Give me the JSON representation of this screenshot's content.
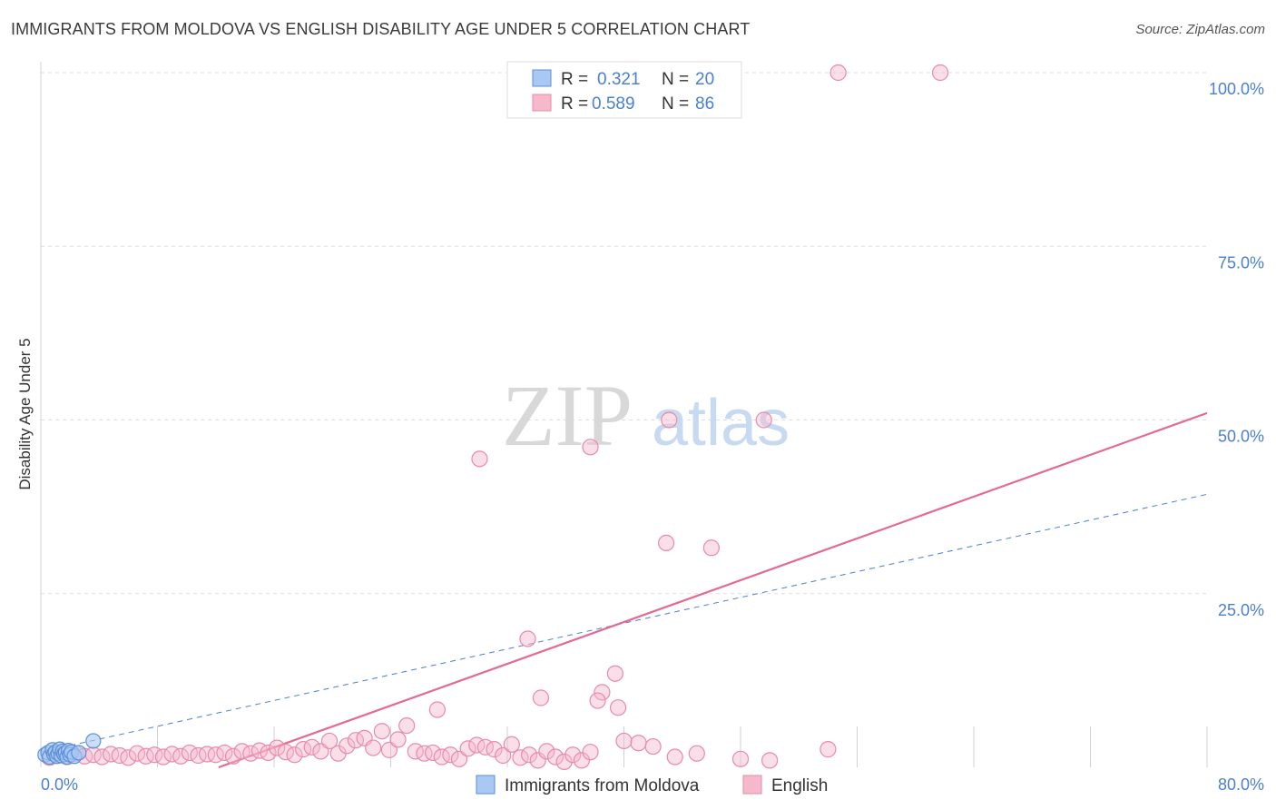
{
  "title": "IMMIGRANTS FROM MOLDOVA VS ENGLISH DISABILITY AGE UNDER 5 CORRELATION CHART",
  "source": "Source: ZipAtlas.com",
  "watermark": {
    "zip": "ZIP",
    "atlas": "atlas"
  },
  "legend_box": [
    {
      "r_label": "R =",
      "r_value": "0.321",
      "n_label": "N =",
      "n_value": "20"
    },
    {
      "r_label": "R =",
      "r_value": "0.589",
      "n_label": "N =",
      "n_value": "86"
    }
  ],
  "colors": {
    "moldova_fill": "#a9c8f4",
    "moldova_stroke": "#5b8ed8",
    "english_fill": "#f6b9cc",
    "english_stroke": "#e88aa8",
    "english_trend": "#e46a92",
    "moldova_trend": "#4a7fd1",
    "axis_value": "#4a7fd1",
    "grid": "#dddddd"
  },
  "chart_data": {
    "type": "scatter",
    "title": "IMMIGRANTS FROM MOLDOVA VS ENGLISH DISABILITY AGE UNDER 5 CORRELATION CHART",
    "xlabel": "",
    "ylabel": "Disability Age Under 5",
    "xlim": [
      0,
      80
    ],
    "ylim": [
      0,
      100
    ],
    "x_tick_labels": [
      "0.0%",
      "80.0%"
    ],
    "y_tick_labels": [
      "100.0%",
      "75.0%",
      "50.0%",
      "25.0%"
    ],
    "y_ticks": [
      100,
      75,
      50,
      25
    ],
    "grid": true,
    "legend_position": "bottom",
    "series": [
      {
        "name": "Immigrants from Moldova",
        "r": 0.321,
        "n": 20,
        "trend": {
          "x": [
            0,
            80
          ],
          "y": [
            2.2,
            39.3
          ],
          "style": "dashed"
        },
        "points": [
          [
            0.3,
            1.8
          ],
          [
            0.5,
            2.1
          ],
          [
            0.6,
            1.5
          ],
          [
            0.8,
            2.5
          ],
          [
            0.9,
            1.9
          ],
          [
            1.0,
            2.2
          ],
          [
            1.1,
            1.6
          ],
          [
            1.2,
            2.0
          ],
          [
            1.3,
            2.6
          ],
          [
            1.4,
            1.7
          ],
          [
            1.5,
            2.3
          ],
          [
            1.6,
            1.9
          ],
          [
            1.7,
            2.1
          ],
          [
            1.8,
            1.5
          ],
          [
            1.9,
            2.4
          ],
          [
            2.0,
            1.8
          ],
          [
            2.1,
            2.2
          ],
          [
            2.3,
            1.6
          ],
          [
            2.6,
            2.1
          ],
          [
            3.6,
            3.8
          ]
        ]
      },
      {
        "name": "English",
        "r": 0.589,
        "n": 86,
        "trend": {
          "x": [
            12.2,
            80
          ],
          "y": [
            0,
            51.0
          ],
          "style": "solid"
        },
        "points": [
          [
            0.6,
            1.4
          ],
          [
            1.2,
            1.7
          ],
          [
            1.8,
            1.5
          ],
          [
            2.4,
            2.0
          ],
          [
            3.0,
            1.6
          ],
          [
            3.6,
            1.8
          ],
          [
            4.2,
            1.5
          ],
          [
            4.8,
            1.9
          ],
          [
            5.4,
            1.7
          ],
          [
            6.0,
            1.4
          ],
          [
            6.6,
            2.0
          ],
          [
            7.2,
            1.6
          ],
          [
            7.8,
            1.8
          ],
          [
            8.4,
            1.5
          ],
          [
            9.0,
            1.9
          ],
          [
            9.6,
            1.6
          ],
          [
            10.2,
            2.1
          ],
          [
            10.8,
            1.7
          ],
          [
            11.4,
            1.9
          ],
          [
            12.0,
            1.8
          ],
          [
            12.6,
            2.1
          ],
          [
            13.2,
            1.6
          ],
          [
            13.8,
            2.3
          ],
          [
            14.4,
            2.0
          ],
          [
            15.0,
            2.4
          ],
          [
            15.6,
            2.1
          ],
          [
            16.2,
            2.8
          ],
          [
            16.8,
            2.2
          ],
          [
            17.4,
            1.8
          ],
          [
            18.0,
            2.6
          ],
          [
            18.6,
            2.9
          ],
          [
            19.2,
            2.3
          ],
          [
            19.8,
            3.8
          ],
          [
            20.4,
            2.0
          ],
          [
            21.0,
            3.1
          ],
          [
            21.6,
            3.9
          ],
          [
            22.2,
            4.2
          ],
          [
            22.8,
            2.8
          ],
          [
            23.4,
            5.2
          ],
          [
            23.9,
            2.5
          ],
          [
            24.5,
            4.0
          ],
          [
            25.1,
            6.0
          ],
          [
            25.7,
            2.3
          ],
          [
            26.3,
            2.0
          ],
          [
            26.9,
            2.1
          ],
          [
            27.5,
            1.5
          ],
          [
            28.1,
            1.8
          ],
          [
            28.7,
            1.2
          ],
          [
            29.3,
            2.7
          ],
          [
            29.9,
            3.2
          ],
          [
            30.5,
            2.9
          ],
          [
            31.1,
            2.6
          ],
          [
            31.7,
            1.7
          ],
          [
            32.3,
            3.3
          ],
          [
            32.9,
            1.4
          ],
          [
            33.5,
            1.8
          ],
          [
            34.1,
            1.0
          ],
          [
            34.7,
            2.3
          ],
          [
            35.3,
            1.5
          ],
          [
            35.9,
            0.8
          ],
          [
            36.5,
            1.8
          ],
          [
            37.1,
            1.0
          ],
          [
            37.7,
            2.2
          ],
          [
            27.2,
            8.3
          ],
          [
            38.5,
            10.8
          ],
          [
            38.2,
            9.6
          ],
          [
            39.6,
            8.6
          ],
          [
            40.0,
            3.8
          ],
          [
            33.4,
            18.5
          ],
          [
            34.3,
            10.0
          ],
          [
            39.4,
            13.5
          ],
          [
            41.0,
            3.5
          ],
          [
            42.0,
            3.0
          ],
          [
            43.5,
            1.5
          ],
          [
            45.0,
            2.0
          ],
          [
            48.0,
            1.2
          ],
          [
            50.0,
            1.0
          ],
          [
            54.0,
            2.6
          ],
          [
            30.1,
            44.4
          ],
          [
            37.7,
            46.1
          ],
          [
            42.9,
            32.3
          ],
          [
            46.0,
            31.6
          ],
          [
            43.1,
            50.0
          ],
          [
            49.6,
            50.0
          ],
          [
            54.7,
            100.0
          ],
          [
            61.7,
            100.0
          ]
        ]
      }
    ]
  }
}
